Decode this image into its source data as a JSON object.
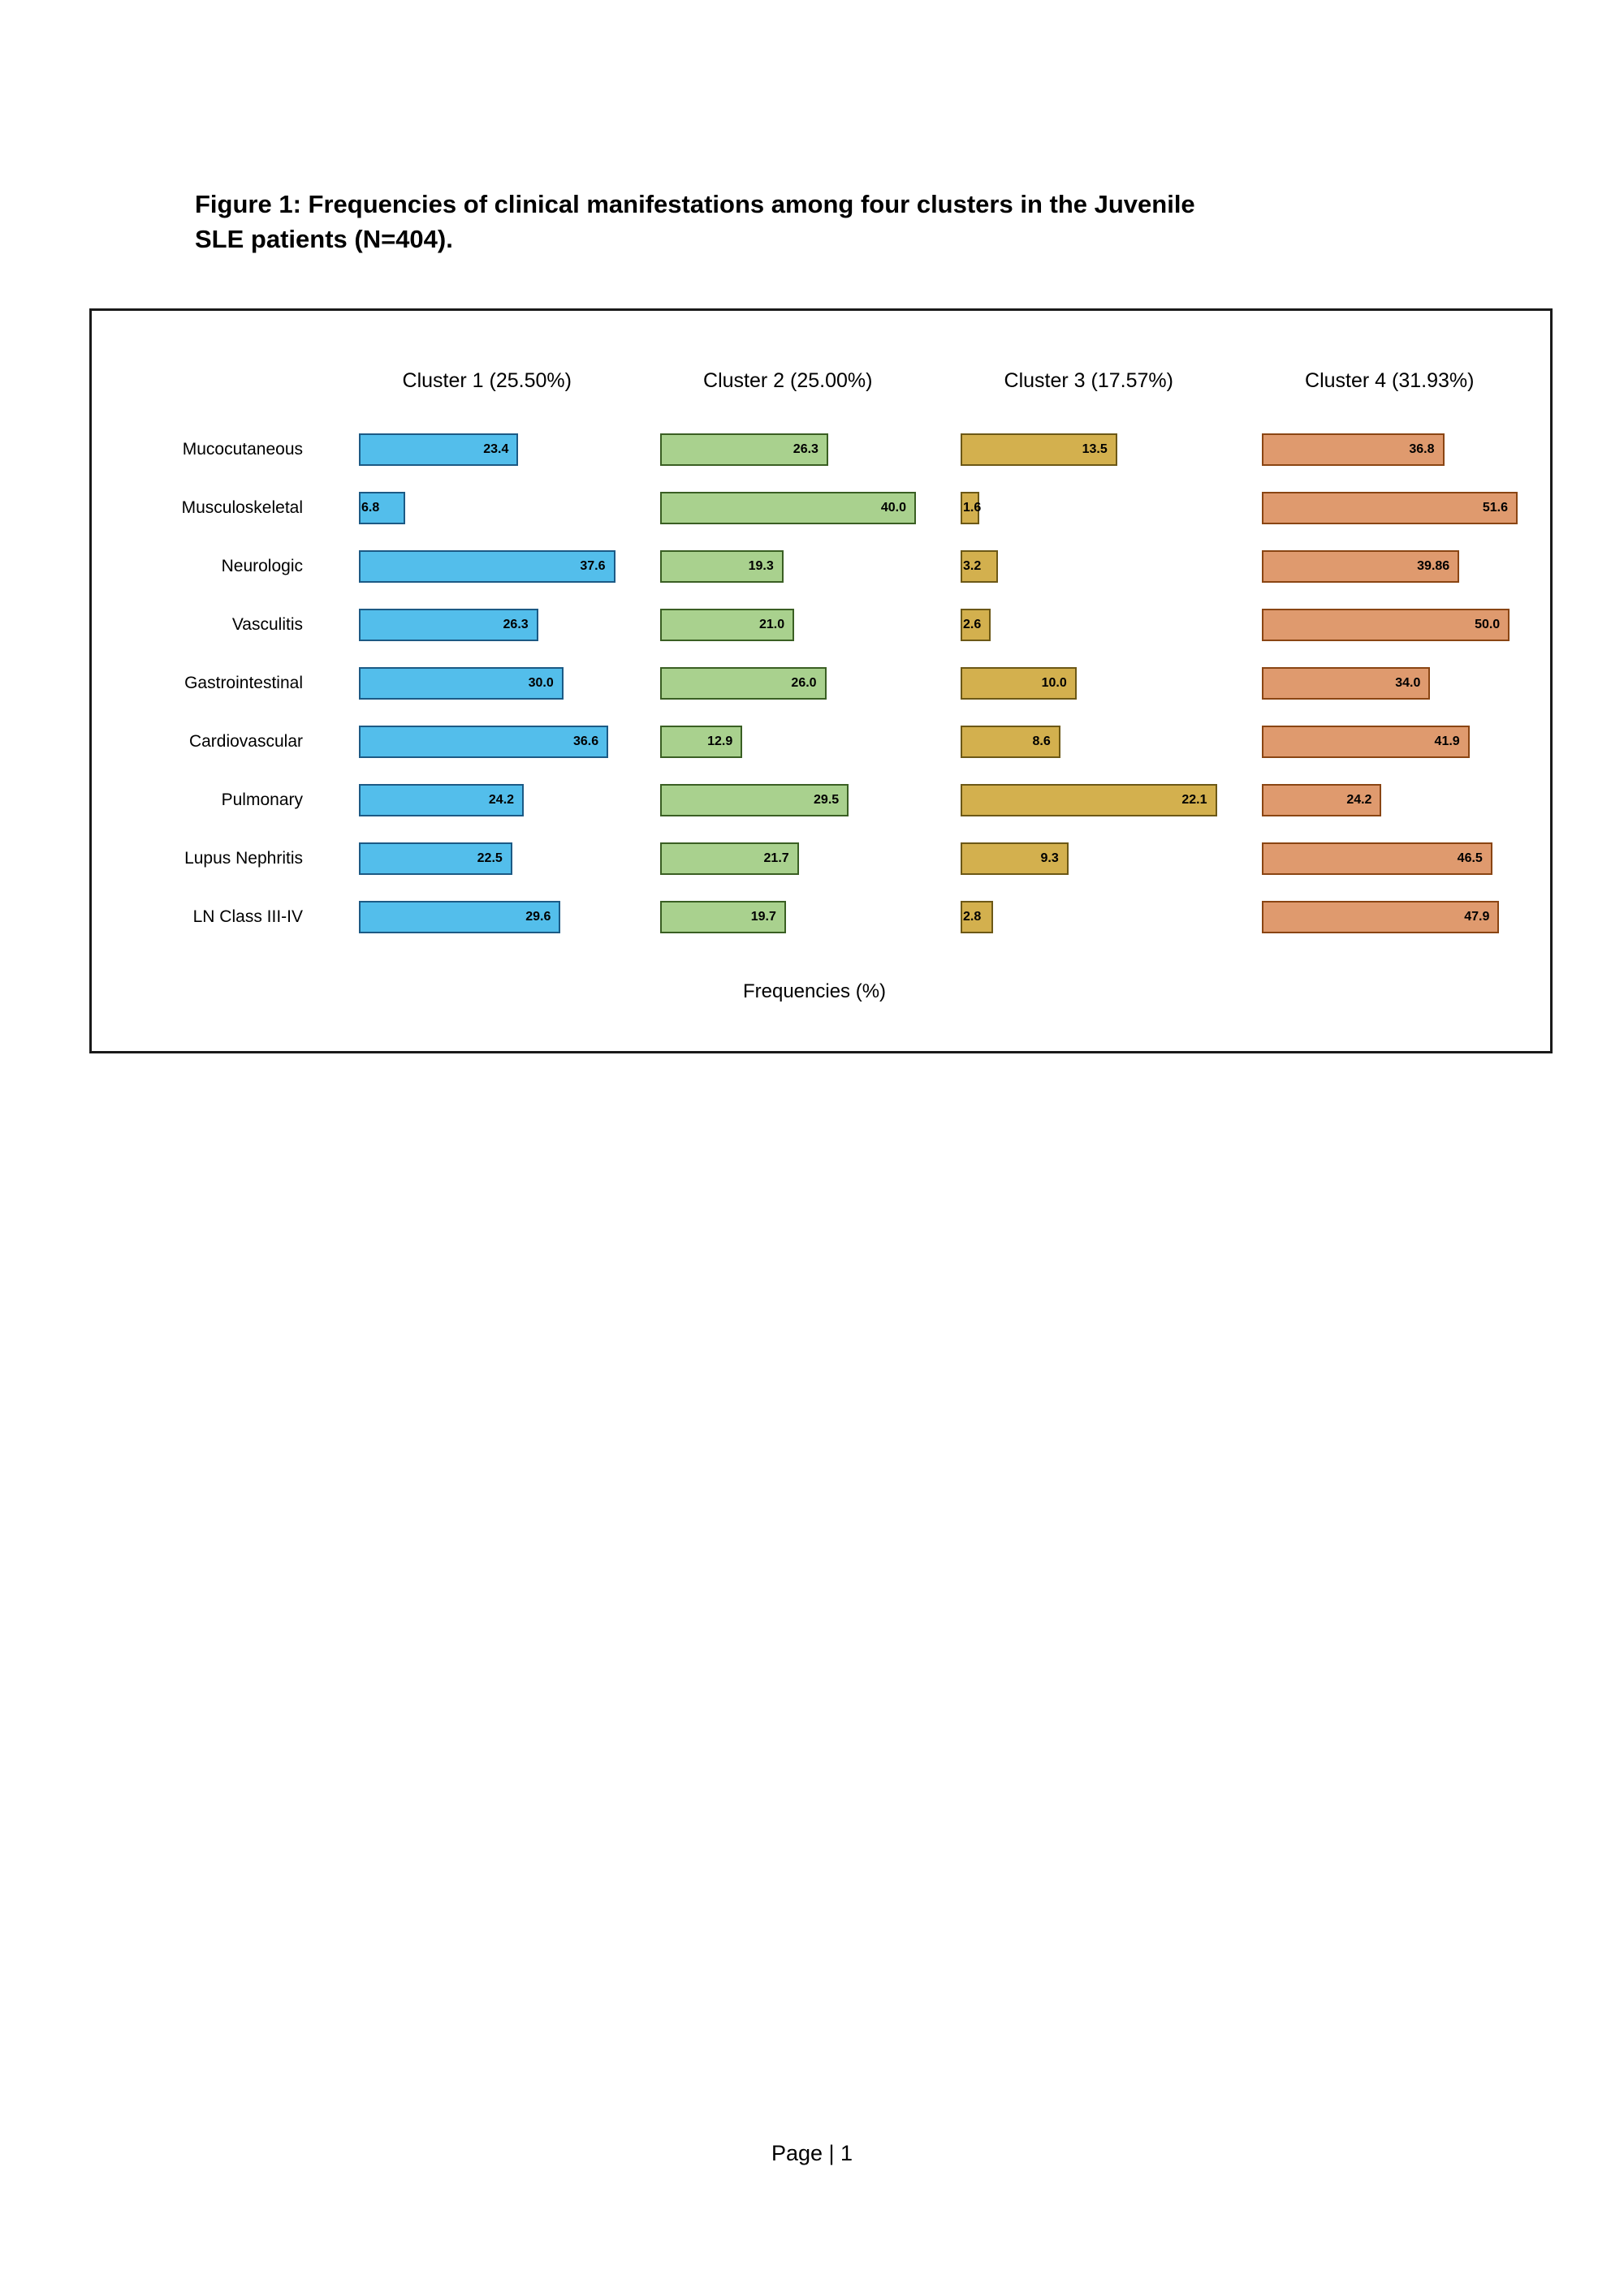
{
  "page": {
    "title_line1": "Figure 1: Frequencies of clinical manifestations among four clusters in the Juvenile",
    "title_line2": "SLE patients (N=404).",
    "footer": "Page | 1"
  },
  "chart_data": {
    "type": "bar",
    "orientation": "horizontal",
    "xlabel": "Frequencies (%)",
    "grid": false,
    "panel_scaling": "each cluster panel scaled to its own max value",
    "categories": [
      "Mucocutaneous",
      "Musculoskeletal",
      "Neurologic",
      "Vasculitis",
      "Gastrointestinal",
      "Cardiovascular",
      "Pulmonary",
      "Lupus Nephritis",
      "LN Class III-IV"
    ],
    "series": [
      {
        "name": "Cluster 1 (25.50%)",
        "fill": "#53BEEB",
        "border": "#1C5A85",
        "values": [
          23.4,
          6.8,
          37.6,
          26.3,
          30.0,
          36.6,
          24.2,
          22.5,
          29.6
        ],
        "value_labels": [
          "23.4",
          "6.8",
          "37.6",
          "26.3",
          "30.0",
          "36.6",
          "24.2",
          "22.5",
          "29.6"
        ]
      },
      {
        "name": "Cluster 2 (25.00%)",
        "fill": "#A9D18E",
        "border": "#3A5F23",
        "values": [
          26.3,
          40.0,
          19.3,
          21.0,
          26.0,
          12.9,
          29.5,
          21.7,
          19.7
        ],
        "value_labels": [
          "26.3",
          "40.0",
          "19.3",
          "21.0",
          "26.0",
          "12.9",
          "29.5",
          "21.7",
          "19.7"
        ]
      },
      {
        "name": "Cluster 3 (17.57%)",
        "fill": "#D3B04E",
        "border": "#6C5816",
        "values": [
          13.5,
          1.6,
          3.2,
          2.6,
          10.0,
          8.6,
          22.1,
          9.3,
          2.8
        ],
        "value_labels": [
          "13.5",
          "1.6",
          "3.2",
          "2.6",
          "10.0",
          "8.6",
          "22.1",
          "9.3",
          "2.8"
        ]
      },
      {
        "name": "Cluster 4 (31.93%)",
        "fill": "#DF9A6E",
        "border": "#8A4513",
        "values": [
          36.8,
          51.6,
          39.86,
          50.0,
          34.0,
          41.9,
          24.2,
          46.5,
          47.9
        ],
        "value_labels": [
          "36.8",
          "51.6",
          "39.86",
          "50.0",
          "34.0",
          "41.9",
          "24.2",
          "46.5",
          "47.9"
        ]
      }
    ]
  }
}
